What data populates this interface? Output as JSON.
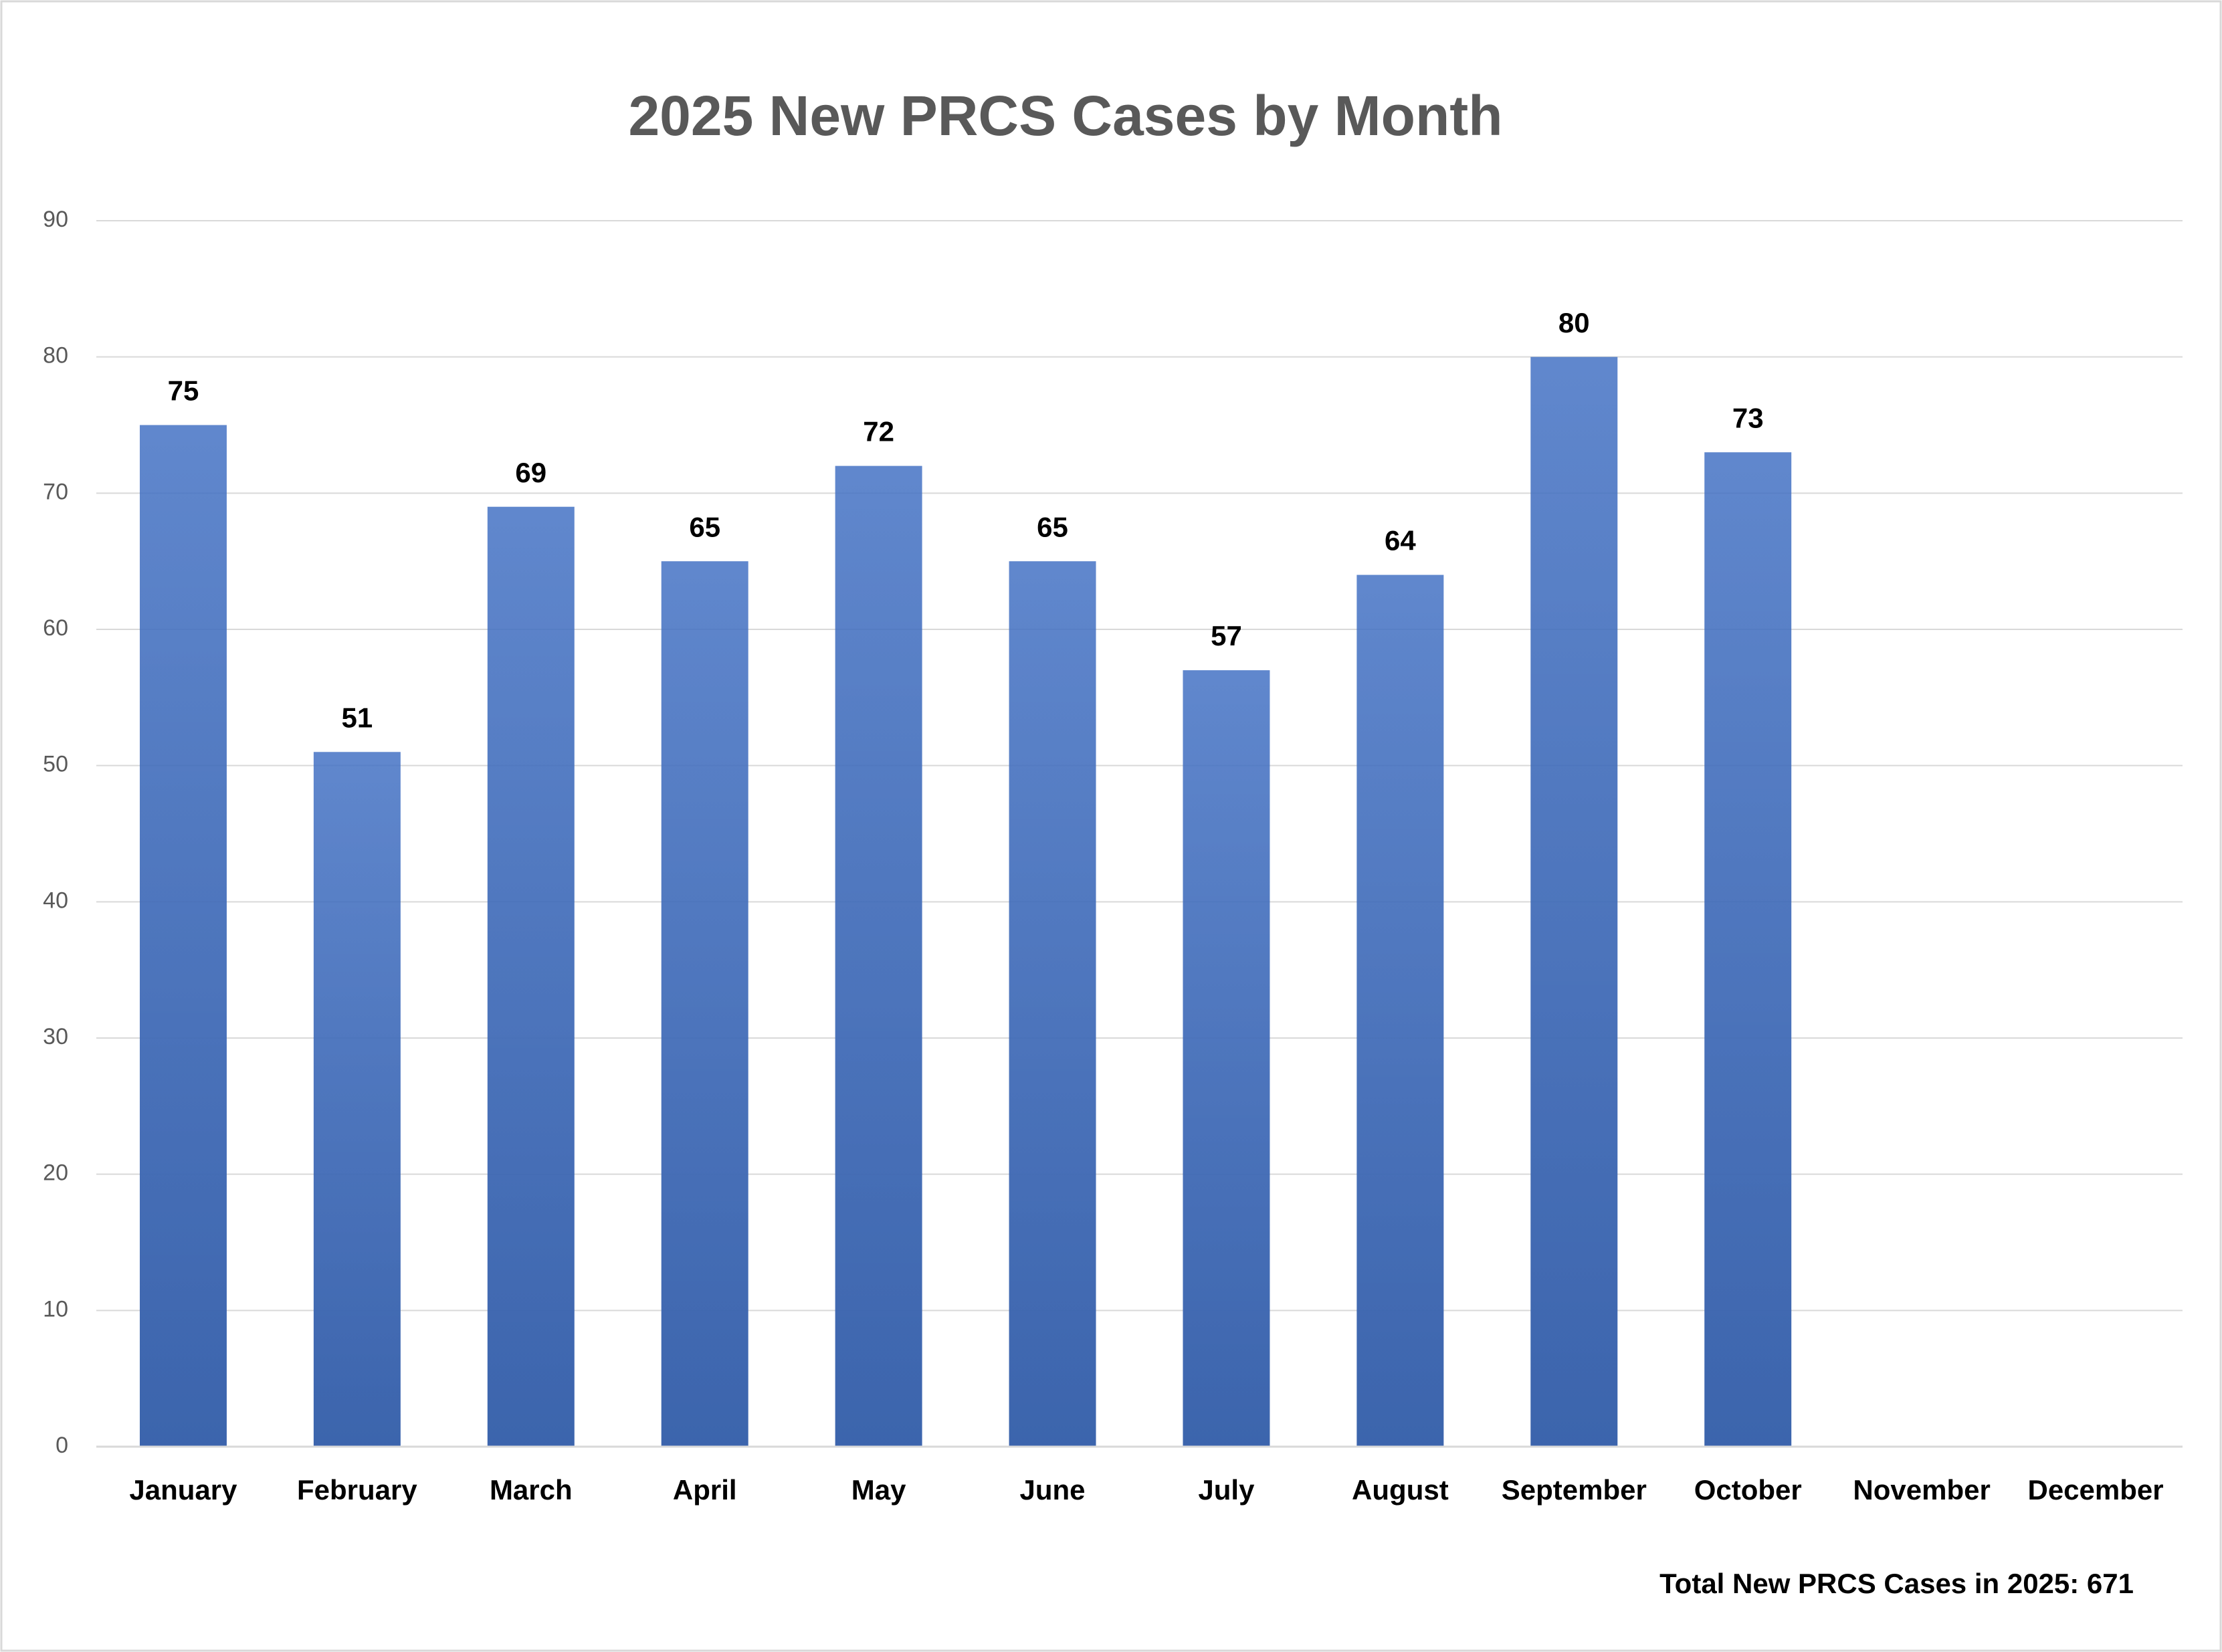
{
  "chart_data": {
    "type": "bar",
    "title": "2025 New PRCS Cases by Month",
    "categories": [
      "January",
      "February",
      "March",
      "April",
      "May",
      "June",
      "July",
      "August",
      "September",
      "October",
      "November",
      "December"
    ],
    "values": [
      75,
      51,
      69,
      65,
      72,
      65,
      57,
      64,
      80,
      73,
      null,
      null
    ],
    "color": "#4472c4",
    "ylim": [
      0,
      90
    ],
    "yticks": [
      0,
      10,
      20,
      30,
      40,
      50,
      60,
      70,
      80,
      90
    ],
    "grid": true,
    "annotation": "Total New PRCS Cases in 2025: 671"
  }
}
